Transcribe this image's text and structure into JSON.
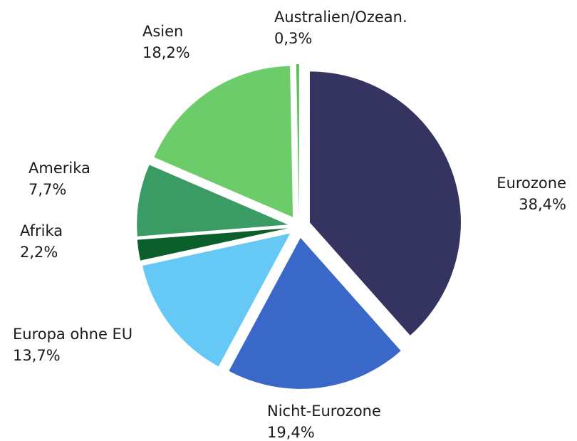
{
  "chart_data": {
    "type": "pie",
    "categories": [
      "Eurozone",
      "Nicht-Eurozone",
      "Europa ohne EU",
      "Afrika",
      "Amerika",
      "Asien",
      "Australien/Ozean."
    ],
    "values": [
      38.4,
      19.4,
      13.7,
      2.2,
      7.7,
      18.2,
      0.3
    ],
    "value_labels": [
      "38,4%",
      "19,4%",
      "13,7%",
      "2,2%",
      "7,7%",
      "18,2%",
      "0,3%"
    ],
    "colors": [
      "#35335f",
      "#3a68c8",
      "#66c8f5",
      "#0b5f2a",
      "#3a9c64",
      "#6ccc6a",
      "#5fbf5a"
    ]
  }
}
